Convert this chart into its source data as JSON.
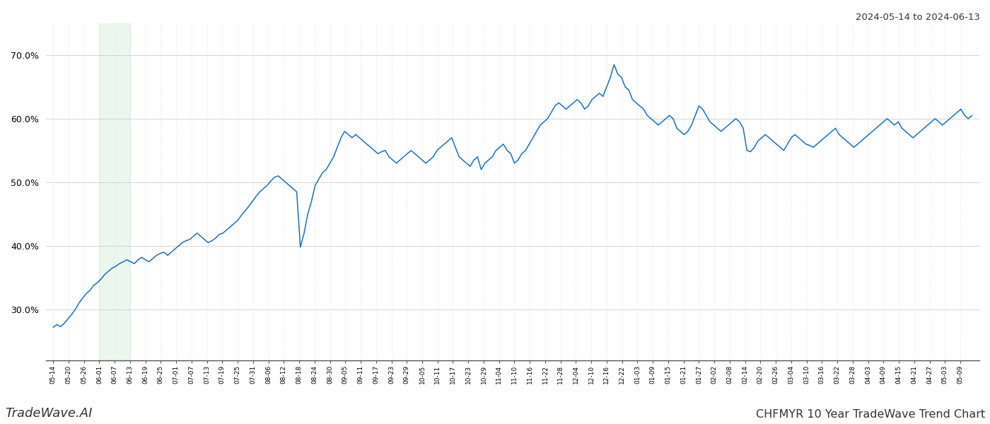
{
  "title": "CHFMYR 10 Year TradeWave Trend Chart",
  "date_range": "2024-05-14 to 2024-06-13",
  "watermark_left": "TradeWave.AI",
  "line_color": "#1a6fb5",
  "bg_color": "#ffffff",
  "grid_color": "#cccccc",
  "highlight_color": "#d4edda",
  "highlight_alpha": 0.45,
  "ylim_low": 22,
  "ylim_high": 75,
  "yticks": [
    30.0,
    40.0,
    50.0,
    60.0,
    70.0
  ],
  "x_labels": [
    "05-14",
    "05-20",
    "05-26",
    "06-01",
    "06-07",
    "06-13",
    "06-19",
    "06-25",
    "07-01",
    "07-07",
    "07-13",
    "07-19",
    "07-25",
    "07-31",
    "08-06",
    "08-12",
    "08-18",
    "08-24",
    "08-30",
    "09-05",
    "09-11",
    "09-17",
    "09-23",
    "09-29",
    "10-05",
    "10-11",
    "10-17",
    "10-23",
    "10-29",
    "11-04",
    "11-10",
    "11-16",
    "11-22",
    "11-28",
    "12-04",
    "12-10",
    "12-16",
    "12-22",
    "01-03",
    "01-09",
    "01-15",
    "01-21",
    "01-27",
    "02-02",
    "02-08",
    "02-14",
    "02-20",
    "02-26",
    "03-04",
    "03-10",
    "03-16",
    "03-22",
    "03-28",
    "04-03",
    "04-09",
    "04-15",
    "04-21",
    "04-27",
    "05-03",
    "05-09"
  ],
  "highlight_label_start": "06-01",
  "highlight_label_end": "06-13",
  "y_values": [
    27.2,
    27.6,
    27.3,
    27.8,
    28.5,
    29.2,
    30.0,
    31.0,
    31.8,
    32.5,
    33.0,
    33.8,
    34.2,
    34.8,
    35.5,
    36.0,
    36.5,
    36.8,
    37.2,
    37.5,
    37.8,
    37.5,
    37.2,
    37.8,
    38.2,
    37.8,
    37.5,
    38.0,
    38.5,
    38.8,
    39.0,
    38.5,
    39.0,
    39.5,
    40.0,
    40.5,
    40.8,
    41.0,
    41.5,
    42.0,
    41.5,
    41.0,
    40.5,
    40.8,
    41.2,
    41.8,
    42.0,
    42.5,
    43.0,
    43.5,
    44.0,
    44.8,
    45.5,
    46.2,
    47.0,
    47.8,
    48.5,
    49.0,
    49.5,
    50.2,
    50.8,
    51.0,
    50.5,
    50.0,
    49.5,
    49.0,
    48.5,
    39.8,
    42.0,
    45.0,
    47.0,
    49.5,
    50.5,
    51.5,
    52.0,
    53.0,
    54.0,
    55.5,
    57.0,
    58.0,
    57.5,
    57.0,
    57.5,
    57.0,
    56.5,
    56.0,
    55.5,
    55.0,
    54.5,
    54.8,
    55.0,
    54.0,
    53.5,
    53.0,
    53.5,
    54.0,
    54.5,
    55.0,
    54.5,
    54.0,
    53.5,
    53.0,
    53.5,
    54.0,
    55.0,
    55.5,
    56.0,
    56.5,
    57.0,
    55.5,
    54.0,
    53.5,
    53.0,
    52.5,
    53.5,
    54.0,
    52.0,
    53.0,
    53.5,
    54.0,
    55.0,
    55.5,
    56.0,
    55.0,
    54.5,
    53.0,
    53.5,
    54.5,
    55.0,
    56.0,
    57.0,
    58.0,
    59.0,
    59.5,
    60.0,
    61.0,
    62.0,
    62.5,
    62.0,
    61.5,
    62.0,
    62.5,
    63.0,
    62.5,
    61.5,
    62.0,
    63.0,
    63.5,
    64.0,
    63.5,
    65.0,
    66.5,
    68.5,
    67.0,
    66.5,
    65.0,
    64.5,
    63.0,
    62.5,
    62.0,
    61.5,
    60.5,
    60.0,
    59.5,
    59.0,
    59.5,
    60.0,
    60.5,
    60.0,
    58.5,
    58.0,
    57.5,
    58.0,
    59.0,
    60.5,
    62.0,
    61.5,
    60.5,
    59.5,
    59.0,
    58.5,
    58.0,
    58.5,
    59.0,
    59.5,
    60.0,
    59.5,
    58.5,
    55.0,
    54.8,
    55.5,
    56.5,
    57.0,
    57.5,
    57.0,
    56.5,
    56.0,
    55.5,
    55.0,
    56.0,
    57.0,
    57.5,
    57.0,
    56.5,
    56.0,
    55.8,
    55.5,
    56.0,
    56.5,
    57.0,
    57.5,
    58.0,
    58.5,
    57.5,
    57.0,
    56.5,
    56.0,
    55.5,
    56.0,
    56.5,
    57.0,
    57.5,
    58.0,
    58.5,
    59.0,
    59.5,
    60.0,
    59.5,
    59.0,
    59.5,
    58.5,
    58.0,
    57.5,
    57.0,
    57.5,
    58.0,
    58.5,
    59.0,
    59.5,
    60.0,
    59.5,
    59.0,
    59.5,
    60.0,
    60.5,
    61.0,
    61.5,
    60.5,
    60.0,
    60.5
  ]
}
